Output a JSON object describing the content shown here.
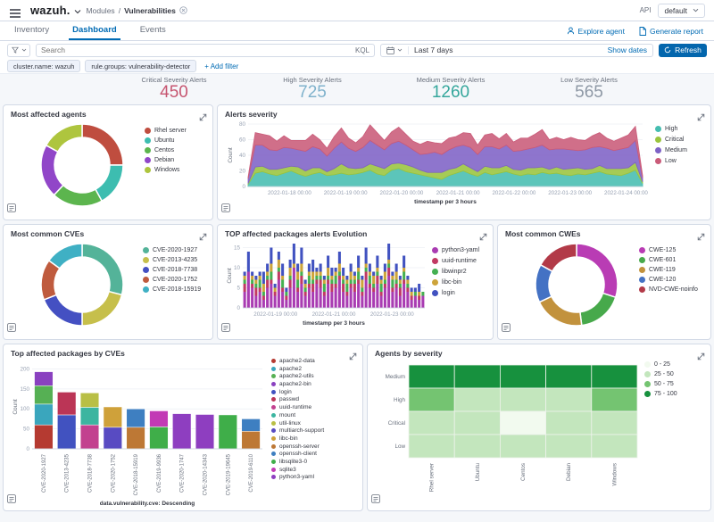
{
  "header": {
    "logo": "wazuh.",
    "breadcrumb_section": "Modules",
    "breadcrumb_separator": "/",
    "breadcrumb_page": "Vulnerabilities",
    "api_label": "API",
    "api_value": "default"
  },
  "tabs": {
    "items": [
      {
        "label": "Inventory",
        "active": false
      },
      {
        "label": "Dashboard",
        "active": true
      },
      {
        "label": "Events",
        "active": false
      }
    ],
    "explore_agent_label": "Explore agent",
    "generate_report_label": "Generate report"
  },
  "search": {
    "placeholder": "Search",
    "kql_label": "KQL",
    "time_range": "Last 7 days",
    "show_dates_label": "Show dates",
    "refresh_label": "Refresh"
  },
  "filters": {
    "chips": [
      "cluster.name: wazuh",
      "rule.groups: vulnerability-detector"
    ],
    "add_label": "+ Add filter"
  },
  "metrics": [
    {
      "label": "Critical Severity Alerts",
      "value": "450",
      "color": "#c65570"
    },
    {
      "label": "High Severity Alerts",
      "value": "725",
      "color": "#7fb2cc"
    },
    {
      "label": "Medium Severity Alerts",
      "value": "1260",
      "color": "#35a79c"
    },
    {
      "label": "Low Severity Alerts",
      "value": "565",
      "color": "#8e98a5"
    }
  ],
  "chart_data": [
    {
      "id": "most-affected-agents",
      "type": "pie",
      "title": "Most affected agents",
      "labels": [
        "Rhel server",
        "Ubuntu",
        "Centos",
        "Debian",
        "Windows"
      ],
      "values": [
        25,
        17,
        20,
        21,
        17
      ],
      "colors": [
        "#bf4d3f",
        "#3dbdb0",
        "#5cb54e",
        "#9146c8",
        "#aec53e"
      ],
      "legend_position": "right"
    },
    {
      "id": "alerts-severity",
      "type": "area",
      "title": "Alerts severity",
      "ylabel": "Count",
      "xlabel": "timestamp per 3 hours",
      "ylim": [
        0,
        80
      ],
      "y_ticks": [
        0,
        20,
        40,
        60,
        80
      ],
      "x_ticks": [
        "2022-01-18 00:00",
        "2022-01-19 00:00",
        "2022-01-20 00:00",
        "2022-01-21 00:00",
        "2022-01-22 00:00",
        "2022-01-23 00:00",
        "2022-01-24 00:00"
      ],
      "legend_position": "right",
      "series": [
        {
          "name": "High",
          "color": "#45bdb0",
          "values": [
            3,
            17,
            19,
            16,
            14,
            17,
            20,
            16,
            13,
            16,
            18,
            14,
            15,
            17,
            15,
            16,
            18,
            21,
            16,
            14,
            21,
            23,
            19,
            17,
            15,
            13,
            11,
            9,
            14,
            17,
            20,
            16,
            13,
            18,
            15,
            17,
            19,
            16,
            14,
            16,
            15,
            18,
            16,
            17,
            15,
            14,
            16,
            15,
            17,
            19,
            16,
            15,
            14,
            17,
            21,
            4
          ]
        },
        {
          "name": "Critical",
          "color": "#9ac43e",
          "values": [
            1,
            8,
            7,
            6,
            8,
            7,
            6,
            9,
            7,
            8,
            6,
            5,
            8,
            12,
            9,
            7,
            6,
            8,
            10,
            9,
            8,
            7,
            9,
            8,
            6,
            5,
            7,
            9,
            8,
            7,
            9,
            8,
            6,
            8,
            9,
            7,
            8,
            6,
            7,
            8,
            9,
            7,
            6,
            8,
            7,
            9,
            8,
            7,
            6,
            8,
            7,
            8,
            9,
            7,
            10,
            2
          ]
        },
        {
          "name": "Medium",
          "color": "#7e62c6",
          "values": [
            6,
            28,
            27,
            25,
            24,
            26,
            23,
            22,
            25,
            27,
            24,
            20,
            26,
            28,
            25,
            22,
            26,
            30,
            27,
            24,
            26,
            28,
            25,
            22,
            20,
            24,
            26,
            23,
            25,
            27,
            24,
            26,
            22,
            25,
            27,
            24,
            26,
            23,
            25,
            24,
            26,
            28,
            25,
            23,
            26,
            24,
            22,
            25,
            27,
            24,
            26,
            23,
            25,
            26,
            28,
            5
          ]
        },
        {
          "name": "Low",
          "color": "#ca5b79",
          "values": [
            2,
            16,
            14,
            18,
            12,
            15,
            10,
            12,
            14,
            16,
            12,
            10,
            15,
            18,
            13,
            11,
            14,
            20,
            16,
            12,
            15,
            18,
            14,
            11,
            13,
            16,
            12,
            14,
            15,
            13,
            16,
            18,
            12,
            15,
            17,
            13,
            15,
            12,
            16,
            14,
            17,
            20,
            13,
            15,
            12,
            16,
            14,
            12,
            15,
            18,
            13,
            12,
            14,
            16,
            18,
            3
          ]
        }
      ]
    },
    {
      "id": "most-common-cves",
      "type": "pie",
      "title": "Most common CVEs",
      "labels": [
        "CVE-2020-1927",
        "CVE-2013-4235",
        "CVE-2018-7738",
        "CVE-2020-1752",
        "CVE-2018-15919"
      ],
      "values": [
        29,
        21,
        19,
        16,
        15
      ],
      "colors": [
        "#54b399",
        "#c6bf4b",
        "#4450c2",
        "#bf5b3e",
        "#3fb0c4"
      ],
      "legend_position": "right"
    },
    {
      "id": "packages-evolution",
      "type": "stacked_bar_time",
      "title": "TOP affected packages alerts Evolution",
      "ylabel": "Count",
      "xlabel": "timestamp per 3 hours",
      "ylim": [
        0,
        16
      ],
      "y_ticks": [
        0,
        5,
        10,
        15
      ],
      "x_ticks": [
        "2022-01-19 00:00",
        "2022-01-21 00:00",
        "2022-01-23 00:00"
      ],
      "legend_position": "right",
      "series": [
        {
          "name": "python3-yaml",
          "color": "#a93cb2",
          "values": [
            4,
            9,
            5,
            3,
            4,
            2,
            5,
            6,
            3,
            7,
            4,
            2,
            5,
            10,
            4,
            6,
            3,
            5,
            4,
            6,
            5,
            3,
            6,
            4,
            5,
            7,
            4,
            3,
            5,
            4,
            6,
            3,
            7,
            5,
            4,
            6,
            3,
            5,
            8,
            4,
            5,
            3,
            6,
            4,
            2,
            3,
            2,
            3
          ]
        },
        {
          "name": "uuid-runtime",
          "color": "#c13a63",
          "values": [
            2,
            0,
            1,
            2,
            1,
            1,
            2,
            1,
            1,
            2,
            1,
            1,
            2,
            0,
            1,
            2,
            1,
            1,
            2,
            1,
            2,
            1,
            1,
            2,
            1,
            1,
            2,
            1,
            1,
            2,
            1,
            1,
            2,
            1,
            1,
            2,
            1,
            1,
            2,
            1,
            1,
            2,
            1,
            1,
            1,
            0,
            1,
            0
          ]
        },
        {
          "name": "libwinpr2",
          "color": "#45b052",
          "values": [
            1,
            0,
            1,
            1,
            2,
            1,
            1,
            2,
            0,
            1,
            2,
            1,
            1,
            0,
            2,
            1,
            1,
            2,
            1,
            1,
            1,
            2,
            1,
            1,
            2,
            1,
            1,
            2,
            1,
            1,
            2,
            1,
            1,
            2,
            1,
            1,
            2,
            1,
            1,
            2,
            1,
            1,
            2,
            1,
            0,
            1,
            0,
            1
          ]
        },
        {
          "name": "libc-bin",
          "color": "#cda43a",
          "values": [
            1,
            0,
            1,
            1,
            1,
            2,
            1,
            2,
            1,
            2,
            1,
            0,
            2,
            1,
            2,
            2,
            1,
            1,
            2,
            1,
            1,
            1,
            2,
            1,
            1,
            2,
            1,
            1,
            2,
            1,
            1,
            2,
            1,
            1,
            2,
            1,
            1,
            2,
            1,
            1,
            2,
            1,
            1,
            1,
            1,
            0,
            1,
            0
          ]
        },
        {
          "name": "login",
          "color": "#4152c0",
          "values": [
            1,
            5,
            1,
            1,
            1,
            3,
            2,
            4,
            1,
            2,
            3,
            1,
            2,
            5,
            2,
            4,
            1,
            2,
            3,
            1,
            2,
            1,
            3,
            2,
            1,
            3,
            2,
            1,
            2,
            1,
            3,
            1,
            4,
            2,
            1,
            3,
            1,
            2,
            4,
            1,
            2,
            1,
            3,
            1,
            1,
            1,
            2,
            0
          ]
        }
      ]
    },
    {
      "id": "most-common-cwes",
      "type": "pie",
      "title": "Most common CWEs",
      "labels": [
        "CWE-125",
        "CWE-601",
        "CWE-119",
        "CWE-120",
        "NVD-CWE-noinfo"
      ],
      "values": [
        30,
        18,
        20,
        15,
        17
      ],
      "colors": [
        "#b93cb4",
        "#47a94b",
        "#c2923d",
        "#4472c4",
        "#b23a48"
      ],
      "legend_position": "right"
    },
    {
      "id": "packages-by-cves",
      "type": "stacked_bar_categorical",
      "title": "Top affected packages by CVEs",
      "ylabel": "Count",
      "xlabel": "data.vulnerability.cve: Descending",
      "ylim": [
        0,
        210
      ],
      "y_ticks": [
        0,
        50,
        100,
        150,
        200
      ],
      "legend_position": "right",
      "legend": [
        {
          "name": "apache2-data",
          "color": "#b53a31"
        },
        {
          "name": "apache2",
          "color": "#3aa6bd"
        },
        {
          "name": "apache2-utils",
          "color": "#56b054"
        },
        {
          "name": "apache2-bin",
          "color": "#8a41c0"
        },
        {
          "name": "login",
          "color": "#4152c0"
        },
        {
          "name": "passwd",
          "color": "#bb3556"
        },
        {
          "name": "uuid-runtime",
          "color": "#c2418f"
        },
        {
          "name": "mount",
          "color": "#3cb5a0"
        },
        {
          "name": "util-linux",
          "color": "#b9bf45"
        },
        {
          "name": "multiarch-support",
          "color": "#584bc2"
        },
        {
          "name": "libc-bin",
          "color": "#cfa13a"
        },
        {
          "name": "openssh-server",
          "color": "#bd7835"
        },
        {
          "name": "openssh-client",
          "color": "#3e7fc1"
        },
        {
          "name": "libsqlite3-0",
          "color": "#3fae49"
        },
        {
          "name": "sqlite3",
          "color": "#c23ab5"
        },
        {
          "name": "python3-yaml",
          "color": "#8e3ec0"
        }
      ],
      "bars": [
        {
          "category": "CVE-2020-1927",
          "segments": [
            {
              "name": "apache2-data",
              "value": 60
            },
            {
              "name": "apache2",
              "value": 52
            },
            {
              "name": "apache2-utils",
              "value": 46
            },
            {
              "name": "apache2-bin",
              "value": 35
            }
          ]
        },
        {
          "category": "CVE-2013-4235",
          "segments": [
            {
              "name": "login",
              "value": 85
            },
            {
              "name": "passwd",
              "value": 57
            }
          ]
        },
        {
          "category": "CVE-2018-7738",
          "segments": [
            {
              "name": "uuid-runtime",
              "value": 60
            },
            {
              "name": "mount",
              "value": 44
            },
            {
              "name": "util-linux",
              "value": 36
            }
          ]
        },
        {
          "category": "CVE-2020-1752",
          "segments": [
            {
              "name": "multiarch-support",
              "value": 54
            },
            {
              "name": "libc-bin",
              "value": 51
            }
          ]
        },
        {
          "category": "CVE-2018-15919",
          "segments": [
            {
              "name": "openssh-server",
              "value": 54
            },
            {
              "name": "openssh-client",
              "value": 46
            }
          ]
        },
        {
          "category": "CVE-2019-9936",
          "segments": [
            {
              "name": "libsqlite3-0",
              "value": 55
            },
            {
              "name": "sqlite3",
              "value": 40
            }
          ]
        },
        {
          "category": "CVE-2020-1747",
          "segments": [
            {
              "name": "python3-yaml",
              "value": 88
            }
          ]
        },
        {
          "category": "CVE-2020-14343",
          "segments": [
            {
              "name": "python3-yaml",
              "value": 86
            }
          ]
        },
        {
          "category": "CVE-2019-19645",
          "segments": [
            {
              "name": "libsqlite3-0",
              "value": 85
            }
          ]
        },
        {
          "category": "CVE-2019-6110",
          "segments": [
            {
              "name": "openssh-server",
              "value": 44
            },
            {
              "name": "openssh-client",
              "value": 31
            }
          ]
        }
      ]
    },
    {
      "id": "agents-by-severity",
      "type": "heatmap",
      "title": "Agents by severity",
      "rows": [
        "Medium",
        "High",
        "Critical",
        "Low"
      ],
      "cols": [
        "Rhel server",
        "Ubuntu",
        "Centos",
        "Debian",
        "Windows"
      ],
      "values": [
        [
          82,
          82,
          82,
          82,
          82
        ],
        [
          55,
          40,
          38,
          40,
          58
        ],
        [
          38,
          35,
          15,
          38,
          36
        ],
        [
          32,
          30,
          30,
          31,
          30
        ]
      ],
      "buckets": [
        {
          "label": "0 - 25",
          "color": "#f2faef"
        },
        {
          "label": "25 - 50",
          "color": "#c3e6bd"
        },
        {
          "label": "50 - 75",
          "color": "#74c471"
        },
        {
          "label": "75 - 100",
          "color": "#17913e"
        }
      ]
    }
  ]
}
